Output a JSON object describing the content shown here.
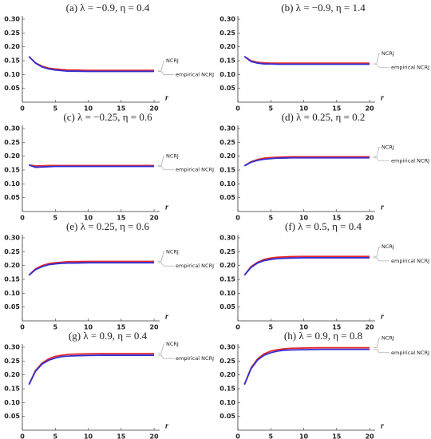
{
  "chart_data": [
    {
      "type": "line",
      "title": "(a) λ = −0.9, η = 0.4",
      "xlabel": "r",
      "x": [
        1,
        2,
        3,
        4,
        5,
        6,
        7,
        8,
        10,
        12,
        14,
        16,
        18,
        20
      ],
      "series": [
        {
          "name": "NCRJ",
          "color": "#e8262b",
          "values": [
            0.165,
            0.142,
            0.13,
            0.123,
            0.12,
            0.118,
            0.116,
            0.116,
            0.115,
            0.115,
            0.115,
            0.115,
            0.115,
            0.115
          ]
        },
        {
          "name": "empirical NCRJ",
          "color": "#2f2fd6",
          "values": [
            0.165,
            0.141,
            0.127,
            0.12,
            0.116,
            0.114,
            0.112,
            0.112,
            0.111,
            0.111,
            0.111,
            0.111,
            0.111,
            0.111
          ]
        }
      ],
      "xlim": [
        0,
        20.6
      ],
      "xticks": [
        0,
        5,
        10,
        15,
        20
      ],
      "ylim": [
        0,
        0.3
      ],
      "yticks": [
        0.05,
        {
          "value": 0.1,
          "label": "0.10"
        },
        0.15,
        {
          "value": 0.2,
          "label": "0.20"
        },
        0.25,
        {
          "value": 0.3,
          "label": "0.30"
        }
      ]
    },
    {
      "type": "line",
      "title": "(b) λ = −0.9, η = 1.4",
      "xlabel": "r",
      "x": [
        1,
        2,
        3,
        4,
        5,
        6,
        7,
        8,
        10,
        12,
        14,
        16,
        18,
        20
      ],
      "series": [
        {
          "name": "NCRJ",
          "color": "#e8262b",
          "values": [
            0.165,
            0.15,
            0.144,
            0.142,
            0.141,
            0.141,
            0.141,
            0.141,
            0.141,
            0.141,
            0.141,
            0.141,
            0.141,
            0.141
          ]
        },
        {
          "name": "empirical NCRJ",
          "color": "#2f2fd6",
          "values": [
            0.165,
            0.147,
            0.141,
            0.138,
            0.138,
            0.137,
            0.137,
            0.137,
            0.137,
            0.137,
            0.137,
            0.137,
            0.137,
            0.137
          ]
        }
      ],
      "xlim": [
        0,
        20.6
      ],
      "xticks": [
        0,
        5,
        10,
        15,
        20
      ],
      "ylim": [
        0,
        0.3
      ],
      "yticks": [
        0.05,
        {
          "value": 0.1,
          "label": "0.10"
        },
        0.15,
        {
          "value": 0.2,
          "label": "0.20"
        },
        0.25,
        {
          "value": 0.3,
          "label": "0.30"
        }
      ]
    },
    {
      "type": "line",
      "title": "(c) λ = −0.25, η = 0.6",
      "xlabel": "r",
      "x": [
        1,
        2,
        3,
        4,
        5,
        6,
        7,
        8,
        10,
        12,
        14,
        16,
        18,
        20
      ],
      "series": [
        {
          "name": "NCRJ",
          "color": "#e8262b",
          "values": [
            0.168,
            0.165,
            0.165,
            0.166,
            0.166,
            0.166,
            0.166,
            0.166,
            0.166,
            0.166,
            0.166,
            0.166,
            0.166,
            0.166
          ]
        },
        {
          "name": "empirical NCRJ",
          "color": "#2f2fd6",
          "values": [
            0.168,
            0.16,
            0.161,
            0.162,
            0.163,
            0.163,
            0.163,
            0.163,
            0.163,
            0.163,
            0.163,
            0.163,
            0.163,
            0.163
          ]
        }
      ],
      "xlim": [
        0,
        20.6
      ],
      "xticks": [
        0,
        5,
        10,
        15,
        20
      ],
      "ylim": [
        0,
        0.3
      ],
      "yticks": [
        0.05,
        {
          "value": 0.1,
          "label": "0.10"
        },
        0.15,
        {
          "value": 0.2,
          "label": "0.20"
        },
        0.25,
        {
          "value": 0.3,
          "label": "0.30"
        }
      ]
    },
    {
      "type": "line",
      "title": "(d) λ = 0.25, η = 0.2",
      "xlabel": "r",
      "x": [
        1,
        2,
        3,
        4,
        5,
        6,
        7,
        8,
        10,
        12,
        14,
        16,
        18,
        20
      ],
      "series": [
        {
          "name": "NCRJ",
          "color": "#e8262b",
          "values": [
            0.165,
            0.18,
            0.188,
            0.193,
            0.195,
            0.196,
            0.197,
            0.198,
            0.198,
            0.198,
            0.198,
            0.198,
            0.198,
            0.198
          ]
        },
        {
          "name": "empirical NCRJ",
          "color": "#2f2fd6",
          "values": [
            0.165,
            0.178,
            0.185,
            0.189,
            0.191,
            0.193,
            0.193,
            0.194,
            0.194,
            0.194,
            0.194,
            0.194,
            0.194,
            0.194
          ]
        }
      ],
      "xlim": [
        0,
        20.6
      ],
      "xticks": [
        0,
        5,
        10,
        15,
        20
      ],
      "ylim": [
        0,
        0.3
      ],
      "yticks": [
        0.05,
        {
          "value": 0.1,
          "label": "0.10"
        },
        0.15,
        {
          "value": 0.2,
          "label": "0.20"
        },
        0.25,
        {
          "value": 0.3,
          "label": "0.30"
        }
      ]
    },
    {
      "type": "line",
      "title": "(e) λ = 0.25, η = 0.6",
      "xlabel": "r",
      "x": [
        1,
        2,
        3,
        4,
        5,
        6,
        7,
        8,
        10,
        12,
        14,
        16,
        18,
        20
      ],
      "series": [
        {
          "name": "NCRJ",
          "color": "#e8262b",
          "values": [
            0.165,
            0.188,
            0.2,
            0.207,
            0.21,
            0.212,
            0.214,
            0.214,
            0.215,
            0.215,
            0.215,
            0.215,
            0.215,
            0.215
          ]
        },
        {
          "name": "empirical NCRJ",
          "color": "#2f2fd6",
          "values": [
            0.165,
            0.185,
            0.196,
            0.203,
            0.206,
            0.208,
            0.209,
            0.209,
            0.21,
            0.21,
            0.21,
            0.21,
            0.21,
            0.21
          ]
        }
      ],
      "xlim": [
        0,
        20.6
      ],
      "xticks": [
        0,
        5,
        10,
        15,
        20
      ],
      "ylim": [
        0,
        0.3
      ],
      "yticks": [
        0.05,
        {
          "value": 0.1,
          "label": "0.10"
        },
        0.15,
        {
          "value": 0.2,
          "label": "0.20"
        },
        0.25,
        {
          "value": 0.3,
          "label": "0.30"
        }
      ]
    },
    {
      "type": "line",
      "title": "(f) λ = 0.5, η = 0.4",
      "xlabel": "r",
      "x": [
        1,
        2,
        3,
        4,
        5,
        6,
        7,
        8,
        10,
        12,
        14,
        16,
        18,
        20
      ],
      "series": [
        {
          "name": "NCRJ",
          "color": "#e8262b",
          "values": [
            0.165,
            0.196,
            0.212,
            0.222,
            0.227,
            0.23,
            0.231,
            0.232,
            0.233,
            0.233,
            0.233,
            0.233,
            0.233,
            0.233
          ]
        },
        {
          "name": "empirical NCRJ",
          "color": "#2f2fd6",
          "values": [
            0.165,
            0.193,
            0.209,
            0.218,
            0.222,
            0.225,
            0.226,
            0.227,
            0.228,
            0.228,
            0.228,
            0.228,
            0.228,
            0.228
          ]
        }
      ],
      "xlim": [
        0,
        20.6
      ],
      "xticks": [
        0,
        5,
        10,
        15,
        20
      ],
      "ylim": [
        0,
        0.3
      ],
      "yticks": [
        0.05,
        {
          "value": 0.1,
          "label": "0.10"
        },
        0.15,
        {
          "value": 0.2,
          "label": "0.20"
        },
        0.25,
        {
          "value": 0.3,
          "label": "0.30"
        }
      ]
    },
    {
      "type": "line",
      "title": "(g) λ = 0.9, η = 0.4",
      "xlabel": "r",
      "x": [
        1,
        2,
        3,
        4,
        5,
        6,
        7,
        8,
        10,
        12,
        14,
        16,
        18,
        20
      ],
      "series": [
        {
          "name": "NCRJ",
          "color": "#e8262b",
          "values": [
            0.165,
            0.216,
            0.243,
            0.258,
            0.267,
            0.271,
            0.274,
            0.275,
            0.276,
            0.277,
            0.277,
            0.277,
            0.277,
            0.277
          ]
        },
        {
          "name": "empirical NCRJ",
          "color": "#2f2fd6",
          "values": [
            0.165,
            0.213,
            0.239,
            0.253,
            0.261,
            0.266,
            0.268,
            0.269,
            0.27,
            0.271,
            0.271,
            0.271,
            0.271,
            0.271
          ]
        }
      ],
      "xlim": [
        0,
        20.6
      ],
      "xticks": [
        0,
        5,
        10,
        15,
        20
      ],
      "ylim": [
        0,
        0.3
      ],
      "yticks": [
        0.05,
        {
          "value": 0.1,
          "label": "0.10"
        },
        0.15,
        {
          "value": 0.2,
          "label": "0.20"
        },
        0.25,
        {
          "value": 0.3,
          "label": "0.30"
        }
      ]
    },
    {
      "type": "line",
      "title": "(h) λ = 0.9, η = 0.8",
      "xlabel": "r",
      "x": [
        1,
        2,
        3,
        4,
        5,
        6,
        7,
        8,
        10,
        12,
        14,
        16,
        18,
        20
      ],
      "series": [
        {
          "name": "NCRJ",
          "color": "#e8262b",
          "values": [
            0.165,
            0.225,
            0.258,
            0.276,
            0.286,
            0.291,
            0.294,
            0.296,
            0.297,
            0.298,
            0.298,
            0.298,
            0.298,
            0.298
          ]
        },
        {
          "name": "empirical NCRJ",
          "color": "#2f2fd6",
          "values": [
            0.165,
            0.222,
            0.254,
            0.271,
            0.28,
            0.286,
            0.289,
            0.29,
            0.291,
            0.292,
            0.292,
            0.292,
            0.292,
            0.292
          ]
        }
      ],
      "xlim": [
        0,
        20.6
      ],
      "xticks": [
        0,
        5,
        10,
        15,
        20
      ],
      "ylim": [
        0,
        0.3
      ],
      "yticks": [
        0.05,
        {
          "value": 0.1,
          "label": "0.10"
        },
        0.15,
        {
          "value": 0.2,
          "label": "0.20"
        },
        0.25,
        {
          "value": 0.3,
          "label": "0.30"
        }
      ]
    }
  ]
}
